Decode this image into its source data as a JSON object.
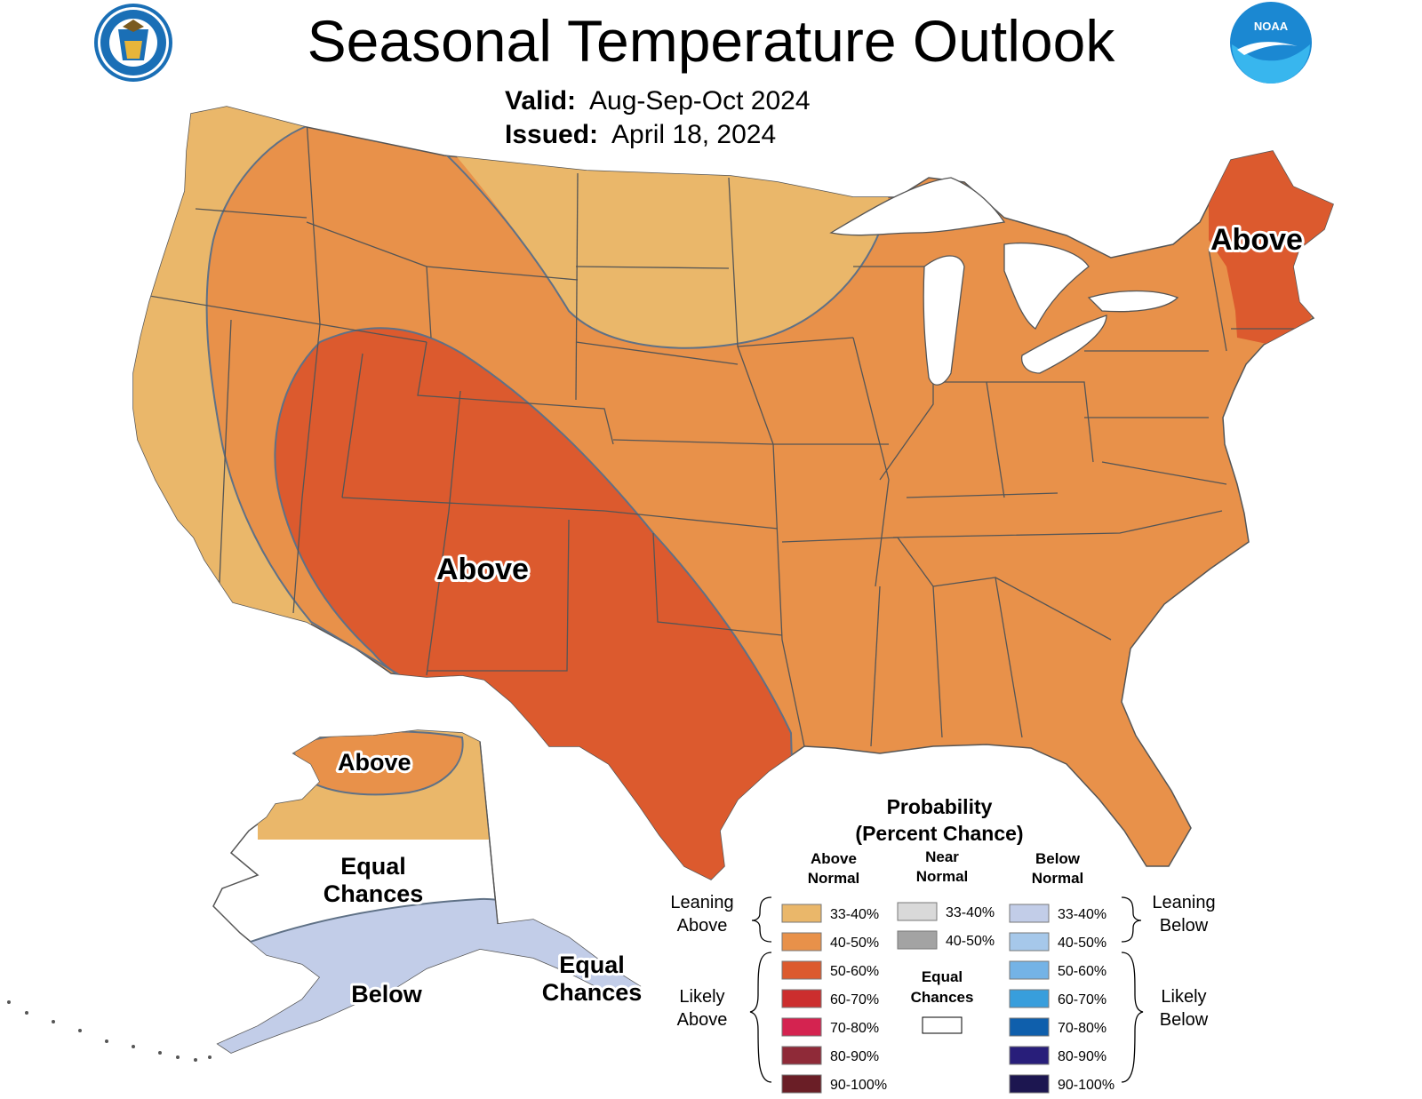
{
  "header": {
    "title": "Seasonal Temperature Outlook",
    "valid_label": "Valid:",
    "valid_value": "Aug-Sep-Oct 2024",
    "issued_label": "Issued:",
    "issued_value": "April 18, 2024",
    "noaa_logo_text": "NOAA"
  },
  "map_labels": {
    "southwest": "Above",
    "northeast": "Above",
    "alaska_north": "Above",
    "alaska_west_1": "Equal",
    "alaska_west_2": "Chances",
    "alaska_south": "Below",
    "alaska_east_1": "Equal",
    "alaska_east_2": "Chances"
  },
  "legend": {
    "title_1": "Probability",
    "title_2": "(Percent Chance)",
    "above_header_1": "Above",
    "above_header_2": "Normal",
    "near_header_1": "Near",
    "near_header_2": "Normal",
    "below_header_1": "Below",
    "below_header_2": "Normal",
    "left_leaning_1": "Leaning",
    "left_leaning_2": "Above",
    "left_likely_1": "Likely",
    "left_likely_2": "Above",
    "right_leaning_1": "Leaning",
    "right_leaning_2": "Below",
    "right_likely_1": "Likely",
    "right_likely_2": "Below",
    "equal_1": "Equal",
    "equal_2": "Chances",
    "above_bins": [
      {
        "label": "33-40%",
        "color": "#eab76a"
      },
      {
        "label": "40-50%",
        "color": "#e8914a"
      },
      {
        "label": "50-60%",
        "color": "#dc5a2e"
      },
      {
        "label": "60-70%",
        "color": "#cc2e2e"
      },
      {
        "label": "70-80%",
        "color": "#d42350"
      },
      {
        "label": "80-90%",
        "color": "#8f2a38"
      },
      {
        "label": "90-100%",
        "color": "#6a1e26"
      }
    ],
    "near_bins": [
      {
        "label": "33-40%",
        "color": "#d9d9d9"
      },
      {
        "label": "40-50%",
        "color": "#a3a3a3"
      }
    ],
    "below_bins": [
      {
        "label": "33-40%",
        "color": "#c2cde8"
      },
      {
        "label": "40-50%",
        "color": "#a6c8ea"
      },
      {
        "label": "50-60%",
        "color": "#74b3e6"
      },
      {
        "label": "60-70%",
        "color": "#389edc"
      },
      {
        "label": "70-80%",
        "color": "#0f5fac"
      },
      {
        "label": "80-90%",
        "color": "#281e7a"
      },
      {
        "label": "90-100%",
        "color": "#1c1650"
      }
    ]
  },
  "colors": {
    "lean_above": "#eab76a",
    "above_40": "#e8914a",
    "above_50": "#dc5a2e",
    "below_33": "#c2cde8",
    "equal_chances": "#ffffff",
    "state_border": "#555555",
    "contour": "#5f7186"
  }
}
